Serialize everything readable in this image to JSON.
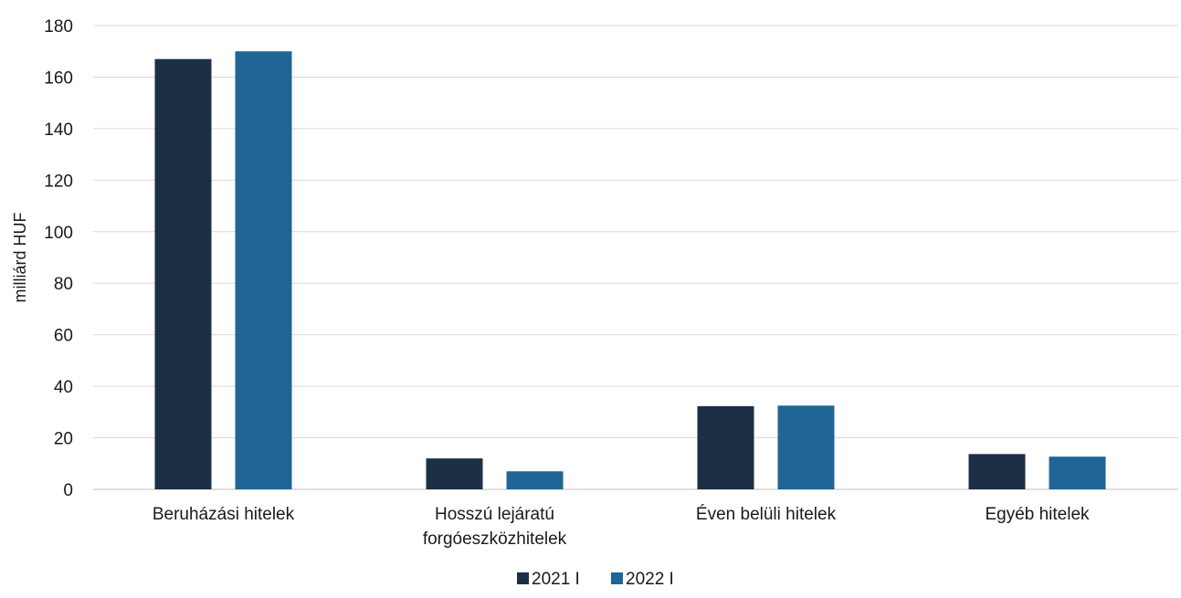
{
  "chart_data": {
    "type": "bar",
    "categories": [
      [
        "Beruházási hitelek"
      ],
      [
        "Hosszú lejáratú",
        "forgóeszközhitelek"
      ],
      [
        "Éven belüli hitelek"
      ],
      [
        "Egyéb hitelek"
      ]
    ],
    "series": [
      {
        "name": "2021 I",
        "color": "#1b3045",
        "values": [
          167,
          12,
          32.3,
          13.7
        ]
      },
      {
        "name": "2022 I",
        "color": "#1f6596",
        "values": [
          170,
          7,
          32.5,
          12.7
        ]
      }
    ],
    "ylabel": "milliárd HUF",
    "ylim": [
      0,
      180
    ],
    "yticks": [
      0,
      20,
      40,
      60,
      80,
      100,
      120,
      140,
      160,
      180
    ],
    "grid": true,
    "legend": "bottom-center"
  }
}
